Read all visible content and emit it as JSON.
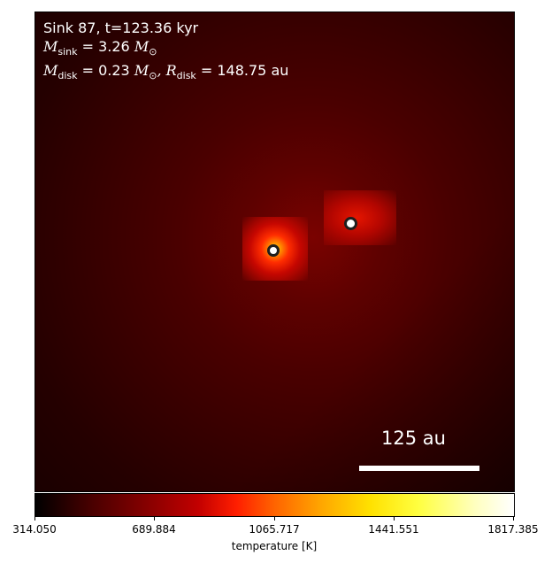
{
  "annotation": {
    "line1": "Sink 87, t=123.36 kyr",
    "m_sink_symbol": "M",
    "m_sink_sub": "sink",
    "m_sink_value": " = 3.26 ",
    "m_sink_unit": "M",
    "m_sink_unit_sub": "⊙",
    "m_disk_symbol": "M",
    "m_disk_sub": "disk",
    "m_disk_value": " = 0.23 ",
    "m_disk_unit": "M",
    "m_disk_unit_sub": "⊙",
    "r_disk_symbol": ", R",
    "r_disk_sub": "disk",
    "r_disk_value": " = 148.75 au"
  },
  "scalebar": {
    "label": "125 au"
  },
  "colorbar": {
    "label": "temperature [K]",
    "ticks": [
      "314.050",
      "689.884",
      "1065.717",
      "1441.551",
      "1817.385"
    ],
    "range": [
      314.05,
      1817.385
    ],
    "colormap": "hot"
  },
  "colors": {
    "background_dark": "#2a0000",
    "text": "#ffffff",
    "sink_marker_fill": "#ffffff",
    "sink_marker_edge": "#1e1e1e"
  },
  "sinks": [
    {
      "name": "sink-1"
    },
    {
      "name": "sink-2"
    }
  ]
}
